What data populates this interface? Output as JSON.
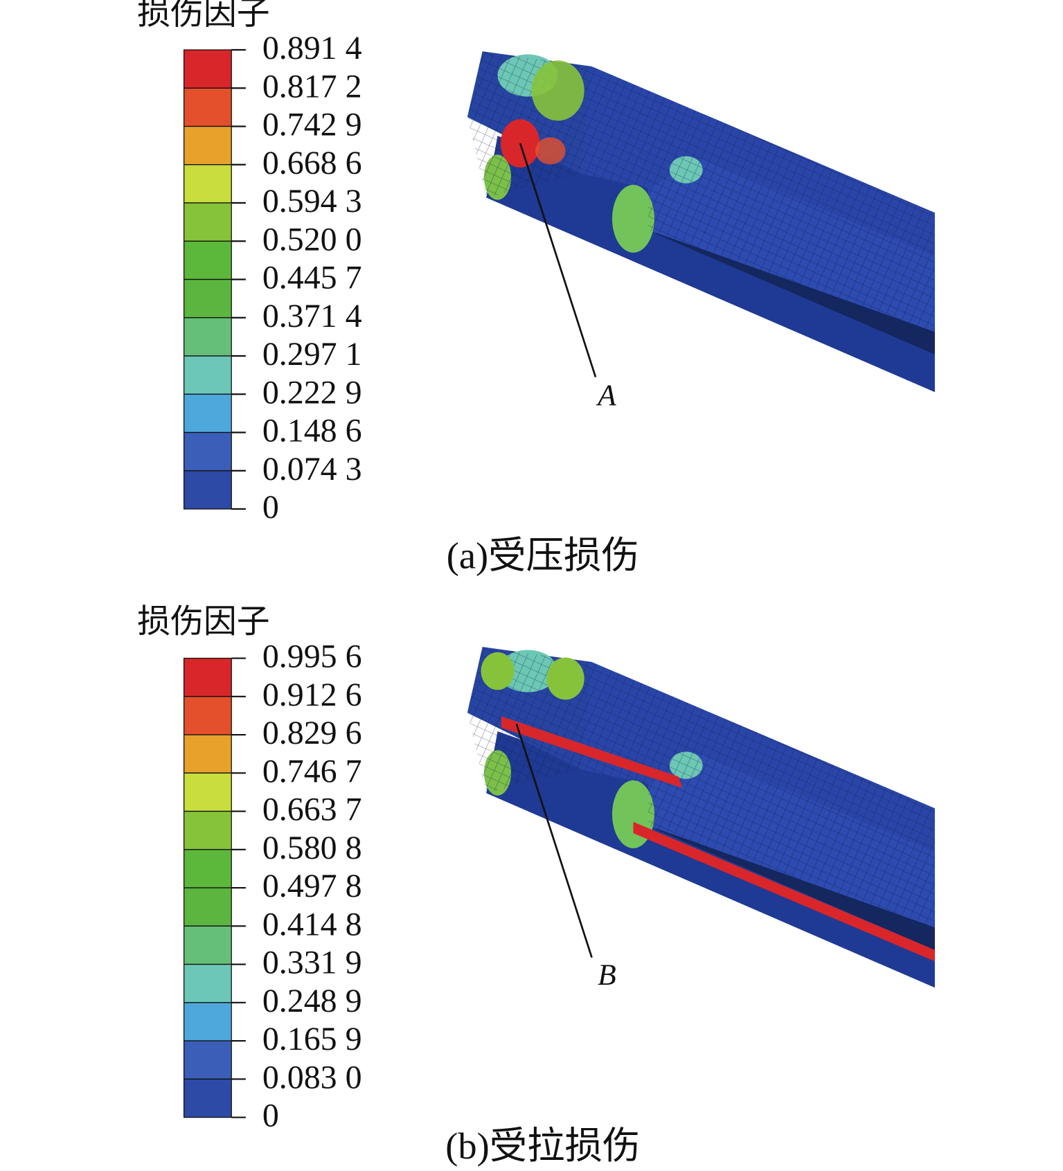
{
  "panels": [
    {
      "legend_title": "损伤因子",
      "levels": [
        "0.891 4",
        "0.817 2",
        "0.742 9",
        "0.668 6",
        "0.594 3",
        "0.520 0",
        "0.445 7",
        "0.371 4",
        "0.297 1",
        "0.222 9",
        "0.148 6",
        "0.074 3",
        "0"
      ],
      "marker": "A",
      "caption": "(a)受压损伤"
    },
    {
      "legend_title": "损伤因子",
      "levels": [
        "0.995 6",
        "0.912 6",
        "0.829 6",
        "0.746 7",
        "0.663 7",
        "0.580 8",
        "0.497 8",
        "0.414 8",
        "0.331 9",
        "0.248 9",
        "0.165 9",
        "0.083 0",
        "0"
      ],
      "marker": "B",
      "caption": "(b)受拉损伤"
    }
  ]
}
